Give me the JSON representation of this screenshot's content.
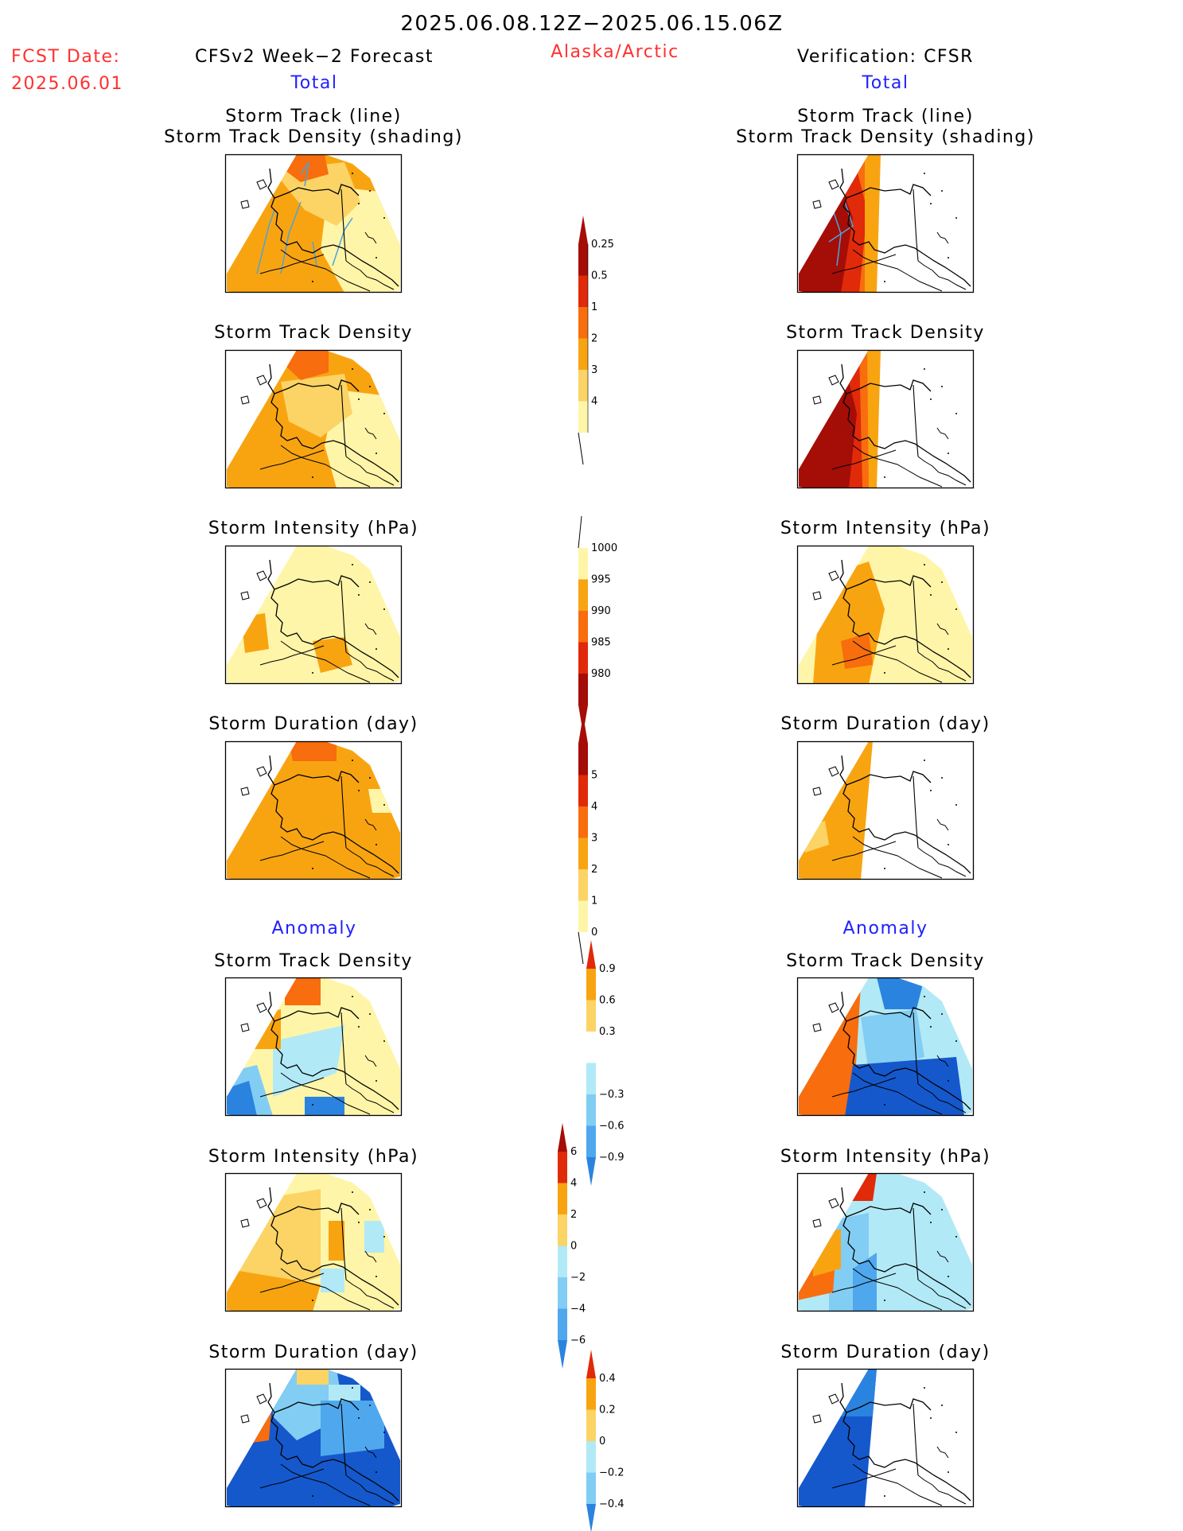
{
  "header": {
    "date_range": "2025.06.08.12Z−2025.06.15.06Z",
    "fcst_label": "FCST Date:",
    "fcst_date": "2025.06.01",
    "left_title": "CFSv2 Week−2 Forecast",
    "region": "Alaska/Arctic",
    "right_title": "Verification: CFSR",
    "left_section": "Total",
    "right_section": "Total",
    "left_anomaly": "Anomaly",
    "right_anomaly": "Anomaly"
  },
  "panels": {
    "p1a": "Storm Track (line)",
    "p1b": "Storm Track Density (shading)",
    "p2": "Storm Track Density",
    "p3": "Storm Intensity (hPa)",
    "p4": "Storm Duration (day)",
    "p5": "Storm Track Density",
    "p6": "Storm Intensity (hPa)",
    "p7": "Storm Duration (day)"
  },
  "colors": {
    "c_lightyellow": "#fff5a8",
    "c_yellow": "#fbd465",
    "c_orange": "#f8a411",
    "c_darkorange": "#f86d0e",
    "c_red": "#e02a0a",
    "c_darkred": "#a50d07",
    "c_paleblue": "#b2e9f6",
    "c_lightblue": "#82cdf3",
    "c_midblue": "#4fa8ee",
    "c_blue": "#2b83e0",
    "c_darkblue": "#1558cc",
    "track": "#4aa3de",
    "title_red": "#ff3030",
    "title_blue": "#2020ff"
  },
  "colorbars": {
    "density": [
      "0.25",
      "0.5",
      "1",
      "2",
      "3",
      "4"
    ],
    "intensity": [
      "1000",
      "995",
      "990",
      "985",
      "980"
    ],
    "duration": [
      "0",
      "1",
      "2",
      "3",
      "4",
      "5"
    ],
    "anom_density": [
      "0.9",
      "0.6",
      "0.3",
      "−0.3",
      "−0.6",
      "−0.9"
    ],
    "anom_intensity": [
      "6",
      "4",
      "2",
      "0",
      "−2",
      "−4",
      "−6"
    ],
    "anom_duration": [
      "0.4",
      "0.2",
      "0",
      "−0.2",
      "−0.4"
    ]
  }
}
